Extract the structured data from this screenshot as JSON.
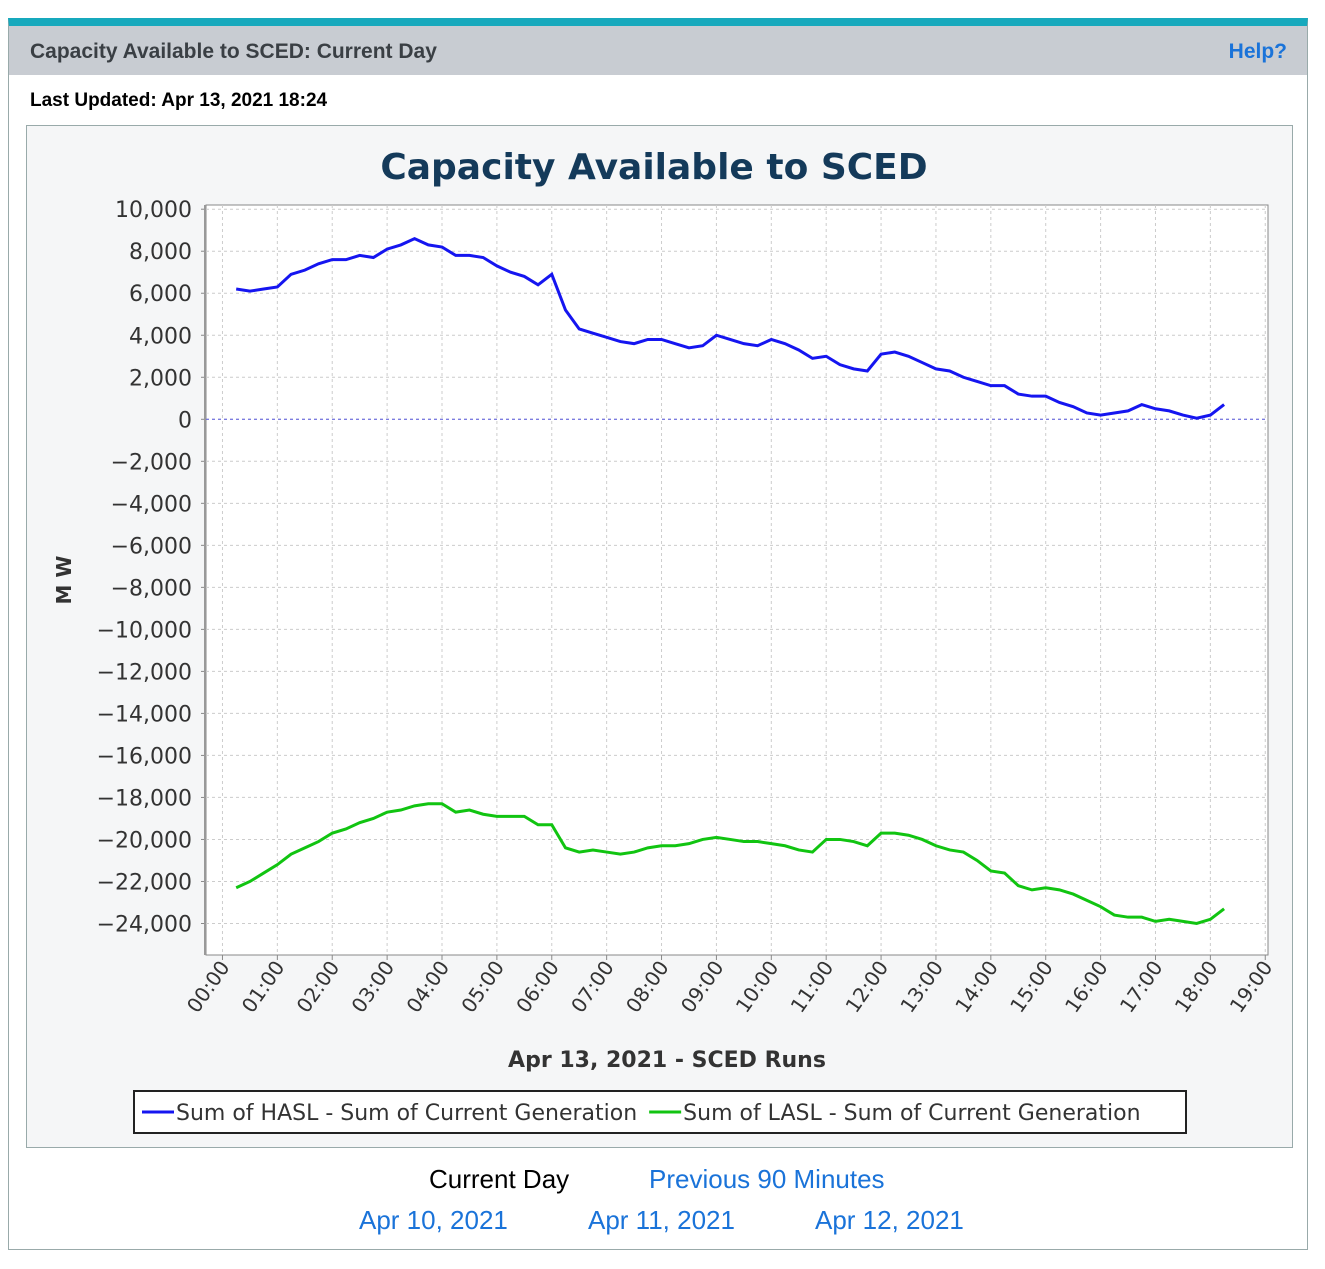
{
  "header": {
    "title": "Capacity Available to SCED: Current Day",
    "help": "Help?"
  },
  "last_updated": "Last Updated: Apr 13, 2021 18:24",
  "chart_data": {
    "type": "line",
    "title": "Capacity Available to SCED",
    "x_label": "Apr 13, 2021 - SCED Runs",
    "y_label": "M W",
    "x": [
      0.25,
      0.5,
      0.75,
      1,
      1.25,
      1.5,
      1.75,
      2,
      2.25,
      2.5,
      2.75,
      3,
      3.25,
      3.5,
      3.75,
      4,
      4.25,
      4.5,
      4.75,
      5,
      5.25,
      5.5,
      5.75,
      6,
      6.25,
      6.5,
      6.75,
      7,
      7.25,
      7.5,
      7.75,
      8,
      8.25,
      8.5,
      8.75,
      9,
      9.25,
      9.5,
      9.75,
      10,
      10.25,
      10.5,
      10.75,
      11,
      11.25,
      11.5,
      11.75,
      12,
      12.25,
      12.5,
      12.75,
      13,
      13.25,
      13.5,
      13.75,
      14,
      14.25,
      14.5,
      14.75,
      15,
      15.25,
      15.5,
      15.75,
      16,
      16.25,
      16.5,
      16.75,
      17,
      17.25,
      17.5,
      17.75,
      18,
      18.25
    ],
    "series": [
      {
        "name": "Sum of HASL - Sum of Current Generation",
        "color": "#1515f0",
        "values": [
          6200,
          6100,
          6200,
          6300,
          6900,
          7100,
          7400,
          7600,
          7600,
          7800,
          7700,
          8100,
          8300,
          8600,
          8300,
          8200,
          7800,
          7800,
          7700,
          7300,
          7000,
          6800,
          6400,
          6900,
          5200,
          4300,
          4100,
          3900,
          3700,
          3600,
          3800,
          3800,
          3600,
          3400,
          3500,
          4000,
          3800,
          3600,
          3500,
          3800,
          3600,
          3300,
          2900,
          3000,
          2600,
          2400,
          2300,
          3100,
          3200,
          3000,
          2700,
          2400,
          2300,
          2000,
          1800,
          1600,
          1600,
          1200,
          1100,
          1100,
          800,
          600,
          300,
          200,
          300,
          400,
          700,
          500,
          400,
          200,
          50,
          200,
          700
        ]
      },
      {
        "name": "Sum of LASL - Sum of Current Generation",
        "color": "#11c411",
        "values": [
          -22300,
          -22000,
          -21600,
          -21200,
          -20700,
          -20400,
          -20100,
          -19700,
          -19500,
          -19200,
          -19000,
          -18700,
          -18600,
          -18400,
          -18300,
          -18300,
          -18700,
          -18600,
          -18800,
          -18900,
          -18900,
          -18900,
          -19300,
          -19300,
          -20400,
          -20600,
          -20500,
          -20600,
          -20700,
          -20600,
          -20400,
          -20300,
          -20300,
          -20200,
          -20000,
          -19900,
          -20000,
          -20100,
          -20100,
          -20200,
          -20300,
          -20500,
          -20600,
          -20000,
          -20000,
          -20100,
          -20300,
          -19700,
          -19700,
          -19800,
          -20000,
          -20300,
          -20500,
          -20600,
          -21000,
          -21500,
          -21600,
          -22200,
          -22400,
          -22300,
          -22400,
          -22600,
          -22900,
          -23200,
          -23600,
          -23700,
          -23700,
          -23900,
          -23800,
          -23900,
          -24000,
          -23800,
          -23300
        ]
      }
    ],
    "xlim": [
      -0.3,
      19.05
    ],
    "xticks": [
      {
        "value": 0,
        "label": "00:00"
      },
      {
        "value": 1,
        "label": "01:00"
      },
      {
        "value": 2,
        "label": "02:00"
      },
      {
        "value": 3,
        "label": "03:00"
      },
      {
        "value": 4,
        "label": "04:00"
      },
      {
        "value": 5,
        "label": "05:00"
      },
      {
        "value": 6,
        "label": "06:00"
      },
      {
        "value": 7,
        "label": "07:00"
      },
      {
        "value": 8,
        "label": "08:00"
      },
      {
        "value": 9,
        "label": "09:00"
      },
      {
        "value": 10,
        "label": "10:00"
      },
      {
        "value": 11,
        "label": "11:00"
      },
      {
        "value": 12,
        "label": "12:00"
      },
      {
        "value": 13,
        "label": "13:00"
      },
      {
        "value": 14,
        "label": "14:00"
      },
      {
        "value": 15,
        "label": "15:00"
      },
      {
        "value": 16,
        "label": "16:00"
      },
      {
        "value": 17,
        "label": "17:00"
      },
      {
        "value": 18,
        "label": "18:00"
      },
      {
        "value": 19,
        "label": "19:00"
      }
    ],
    "ylim": [
      -25500,
      10200
    ],
    "yticks": [
      {
        "value": 10000,
        "label": "10,000"
      },
      {
        "value": 8000,
        "label": "8,000"
      },
      {
        "value": 6000,
        "label": "6,000"
      },
      {
        "value": 4000,
        "label": "4,000"
      },
      {
        "value": 2000,
        "label": "2,000"
      },
      0,
      {
        "value": -2000,
        "label": "−2,000"
      },
      {
        "value": -4000,
        "label": "−4,000"
      },
      {
        "value": -6000,
        "label": "−6,000"
      },
      {
        "value": -8000,
        "label": "−8,000"
      },
      {
        "value": -10000,
        "label": "−10,000"
      },
      {
        "value": -12000,
        "label": "−12,000"
      },
      {
        "value": -14000,
        "label": "−14,000"
      },
      {
        "value": -16000,
        "label": "−16,000"
      },
      {
        "value": -18000,
        "label": "−18,000"
      },
      {
        "value": -20000,
        "label": "−20,000"
      },
      {
        "value": -22000,
        "label": "−22,000"
      },
      {
        "value": -24000,
        "label": "−24,000"
      }
    ],
    "grid": true,
    "legend": "bottom"
  },
  "links": {
    "current": "Current Day",
    "previous": "Previous 90 Minutes",
    "days": [
      "Apr 10, 2021",
      "Apr 11, 2021",
      "Apr 12, 2021"
    ]
  }
}
